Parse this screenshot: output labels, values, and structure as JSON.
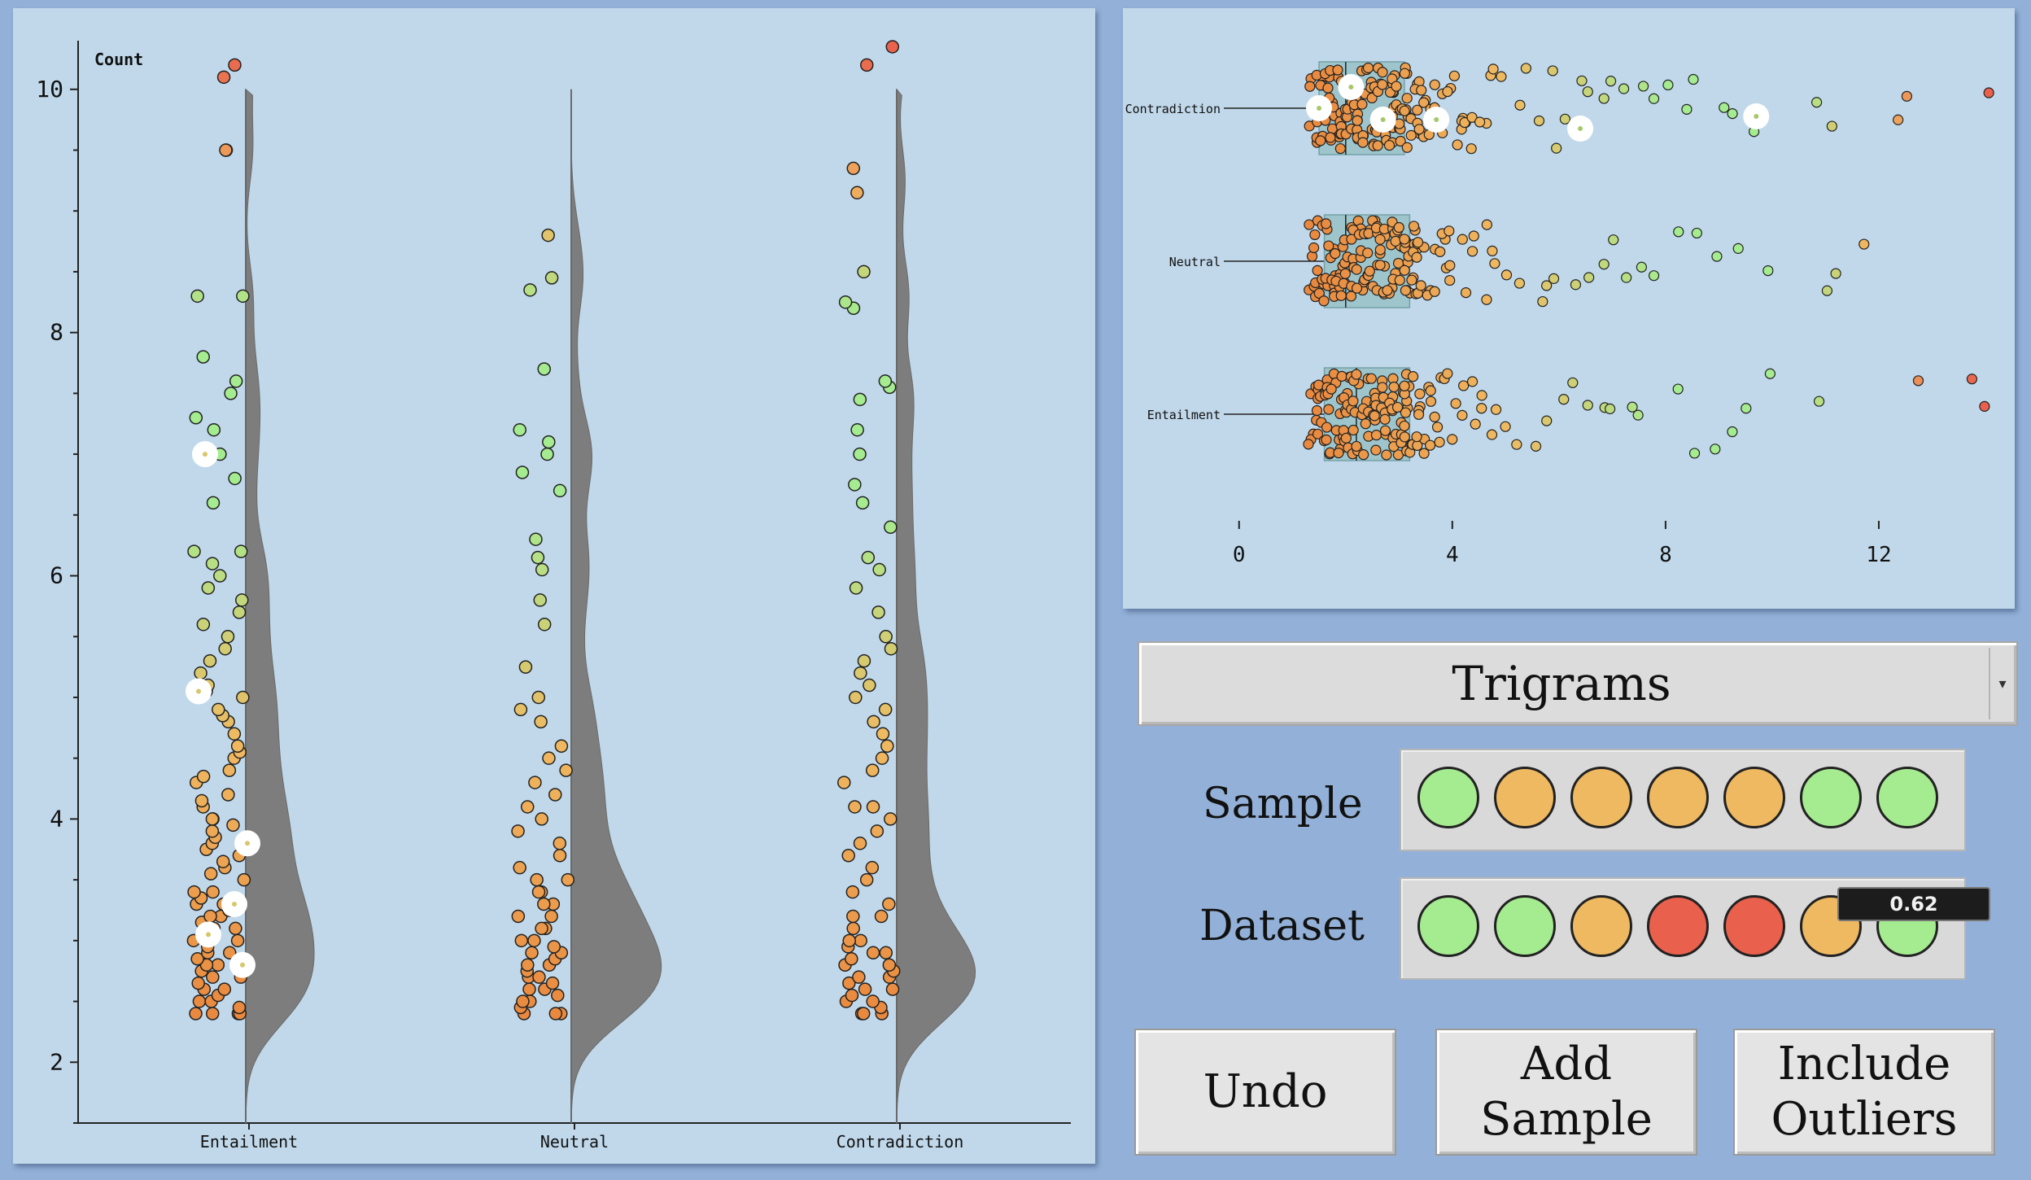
{
  "left_chart": {
    "ylabel": "Count",
    "yticks": [
      "2",
      "4",
      "6",
      "8",
      "10"
    ],
    "categories": [
      "Entailment",
      "Neutral",
      "Contradiction"
    ]
  },
  "right_chart": {
    "categories": [
      "Contradiction",
      "Neutral",
      "Entailment"
    ],
    "xticks": [
      "0",
      "4",
      "8",
      "12"
    ]
  },
  "dropdown": {
    "value": "Trigrams"
  },
  "sample": {
    "label": "Sample",
    "colors": [
      "#a5eb8f",
      "#efb961",
      "#efb961",
      "#efb961",
      "#efb961",
      "#a5eb8f",
      "#a5eb8f"
    ]
  },
  "dataset": {
    "label": "Dataset",
    "colors": [
      "#a5eb8f",
      "#a5eb8f",
      "#efb961",
      "#e9604c",
      "#e9604c",
      "#efb961",
      "#a5eb8f"
    ],
    "tooltip": "0.62"
  },
  "buttons": {
    "undo": "Undo",
    "add_sample": "Add\nSample",
    "include_outliers": "Include\nOutliers"
  },
  "chart_data": [
    {
      "type": "scatter",
      "title": "",
      "ylabel": "Count",
      "ylim": [
        1.5,
        10.4
      ],
      "categories": [
        "Entailment",
        "Neutral",
        "Contradiction"
      ],
      "description_of_series": "strip points with half-violin density per category",
      "series": [
        {
          "category": "Entailment",
          "points": [
            2.4,
            2.4,
            2.4,
            2.4,
            2.45,
            2.5,
            2.5,
            2.55,
            2.6,
            2.6,
            2.65,
            2.7,
            2.7,
            2.75,
            2.8,
            2.8,
            2.85,
            2.9,
            2.9,
            2.95,
            3.0,
            3.0,
            3.05,
            3.1,
            3.1,
            3.15,
            3.2,
            3.2,
            3.25,
            3.3,
            3.3,
            3.35,
            3.4,
            3.4,
            3.5,
            3.55,
            3.6,
            3.65,
            3.7,
            3.75,
            3.8,
            3.85,
            3.9,
            3.95,
            4.0,
            4.0,
            4.1,
            4.15,
            4.2,
            4.3,
            4.35,
            4.4,
            4.5,
            4.55,
            4.6,
            4.7,
            4.8,
            4.85,
            4.9,
            5.0,
            5.05,
            5.1,
            5.2,
            5.3,
            5.4,
            5.5,
            5.6,
            5.7,
            5.8,
            5.9,
            6.0,
            6.1,
            6.2,
            6.2,
            6.6,
            6.8,
            7.0,
            7.2,
            7.3,
            7.5,
            7.6,
            7.8,
            8.3,
            8.3,
            9.5,
            9.5,
            10.1,
            10.2
          ]
        },
        {
          "category": "Neutral",
          "points": [
            2.4,
            2.4,
            2.4,
            2.45,
            2.5,
            2.5,
            2.55,
            2.6,
            2.6,
            2.65,
            2.7,
            2.7,
            2.75,
            2.8,
            2.8,
            2.85,
            2.9,
            2.9,
            2.95,
            3.0,
            3.0,
            3.1,
            3.1,
            3.2,
            3.2,
            3.3,
            3.3,
            3.4,
            3.4,
            3.5,
            3.5,
            3.6,
            3.7,
            3.8,
            3.9,
            4.0,
            4.1,
            4.2,
            4.3,
            4.4,
            4.5,
            4.6,
            4.8,
            4.9,
            5.0,
            5.25,
            5.6,
            5.8,
            6.05,
            6.15,
            6.3,
            6.7,
            6.85,
            7.0,
            7.1,
            7.2,
            7.7,
            8.35,
            8.45,
            8.8
          ]
        },
        {
          "category": "Contradiction",
          "points": [
            2.4,
            2.4,
            2.4,
            2.45,
            2.5,
            2.5,
            2.55,
            2.6,
            2.6,
            2.65,
            2.7,
            2.7,
            2.75,
            2.8,
            2.8,
            2.85,
            2.9,
            2.9,
            2.95,
            3.0,
            3.0,
            3.1,
            3.2,
            3.2,
            3.3,
            3.4,
            3.5,
            3.6,
            3.7,
            3.8,
            3.9,
            4.0,
            4.1,
            4.1,
            4.3,
            4.4,
            4.5,
            4.6,
            4.7,
            4.8,
            4.9,
            5.0,
            5.1,
            5.2,
            5.3,
            5.4,
            5.5,
            5.7,
            5.9,
            6.05,
            6.15,
            6.4,
            6.6,
            6.75,
            7.0,
            7.2,
            7.45,
            7.55,
            7.6,
            8.2,
            8.25,
            8.5,
            9.15,
            9.35,
            10.2,
            10.35
          ]
        }
      ]
    },
    {
      "type": "scatter",
      "title": "",
      "xlim": [
        -0.5,
        14
      ],
      "categories": [
        "Contradiction",
        "Neutral",
        "Entailment"
      ],
      "boxes": [
        {
          "category": "Contradiction",
          "q1": 1.5,
          "median": 2.0,
          "q3": 3.1
        },
        {
          "category": "Neutral",
          "q1": 1.6,
          "median": 2.0,
          "q3": 3.2
        },
        {
          "category": "Entailment",
          "q1": 1.6,
          "median": 2.2,
          "q3": 3.2
        }
      ],
      "series": [
        {
          "category": "Contradiction",
          "points": [
            1.4,
            1.5,
            1.6,
            1.7,
            1.8,
            1.9,
            2.0,
            2.1,
            2.2,
            2.3,
            2.4,
            2.5,
            2.6,
            2.7,
            2.8,
            2.9,
            3.0,
            3.1,
            3.2,
            3.3,
            3.4,
            3.5,
            3.6,
            3.7,
            3.8,
            3.9,
            4.0,
            4.1,
            4.2,
            4.3,
            4.4,
            4.6,
            4.8,
            5.0,
            5.2,
            5.4,
            5.6,
            5.8,
            6.0,
            6.2,
            6.4,
            6.6,
            6.8,
            7.0,
            7.2,
            7.5,
            7.8,
            8.0,
            8.3,
            8.6,
            9.0,
            9.3,
            9.6,
            10.8,
            11.2,
            12.3,
            12.6,
            14.0
          ]
        },
        {
          "category": "Neutral",
          "points": [
            1.4,
            1.5,
            1.6,
            1.7,
            1.8,
            1.9,
            2.0,
            2.1,
            2.2,
            2.3,
            2.4,
            2.5,
            2.6,
            2.7,
            2.8,
            2.9,
            3.0,
            3.1,
            3.2,
            3.3,
            3.4,
            3.5,
            3.6,
            3.7,
            3.8,
            3.9,
            4.0,
            4.2,
            4.4,
            4.6,
            4.8,
            5.0,
            5.3,
            5.6,
            5.8,
            6.0,
            6.3,
            6.6,
            6.8,
            7.0,
            7.2,
            7.5,
            7.8,
            8.3,
            8.6,
            9.0,
            9.3,
            10.0,
            11.0,
            11.1,
            11.8
          ]
        },
        {
          "category": "Entailment",
          "points": [
            1.4,
            1.5,
            1.6,
            1.7,
            1.8,
            1.9,
            2.0,
            2.1,
            2.2,
            2.3,
            2.4,
            2.5,
            2.6,
            2.7,
            2.8,
            2.9,
            3.0,
            3.1,
            3.2,
            3.3,
            3.4,
            3.5,
            3.6,
            3.7,
            3.8,
            3.9,
            4.0,
            4.2,
            4.4,
            4.6,
            4.8,
            5.0,
            5.2,
            5.5,
            5.8,
            6.0,
            6.3,
            6.6,
            6.8,
            7.0,
            7.4,
            7.5,
            8.3,
            8.6,
            9.0,
            9.3,
            9.6,
            10.0,
            10.8,
            12.8,
            13.8,
            14.0
          ]
        }
      ]
    }
  ]
}
